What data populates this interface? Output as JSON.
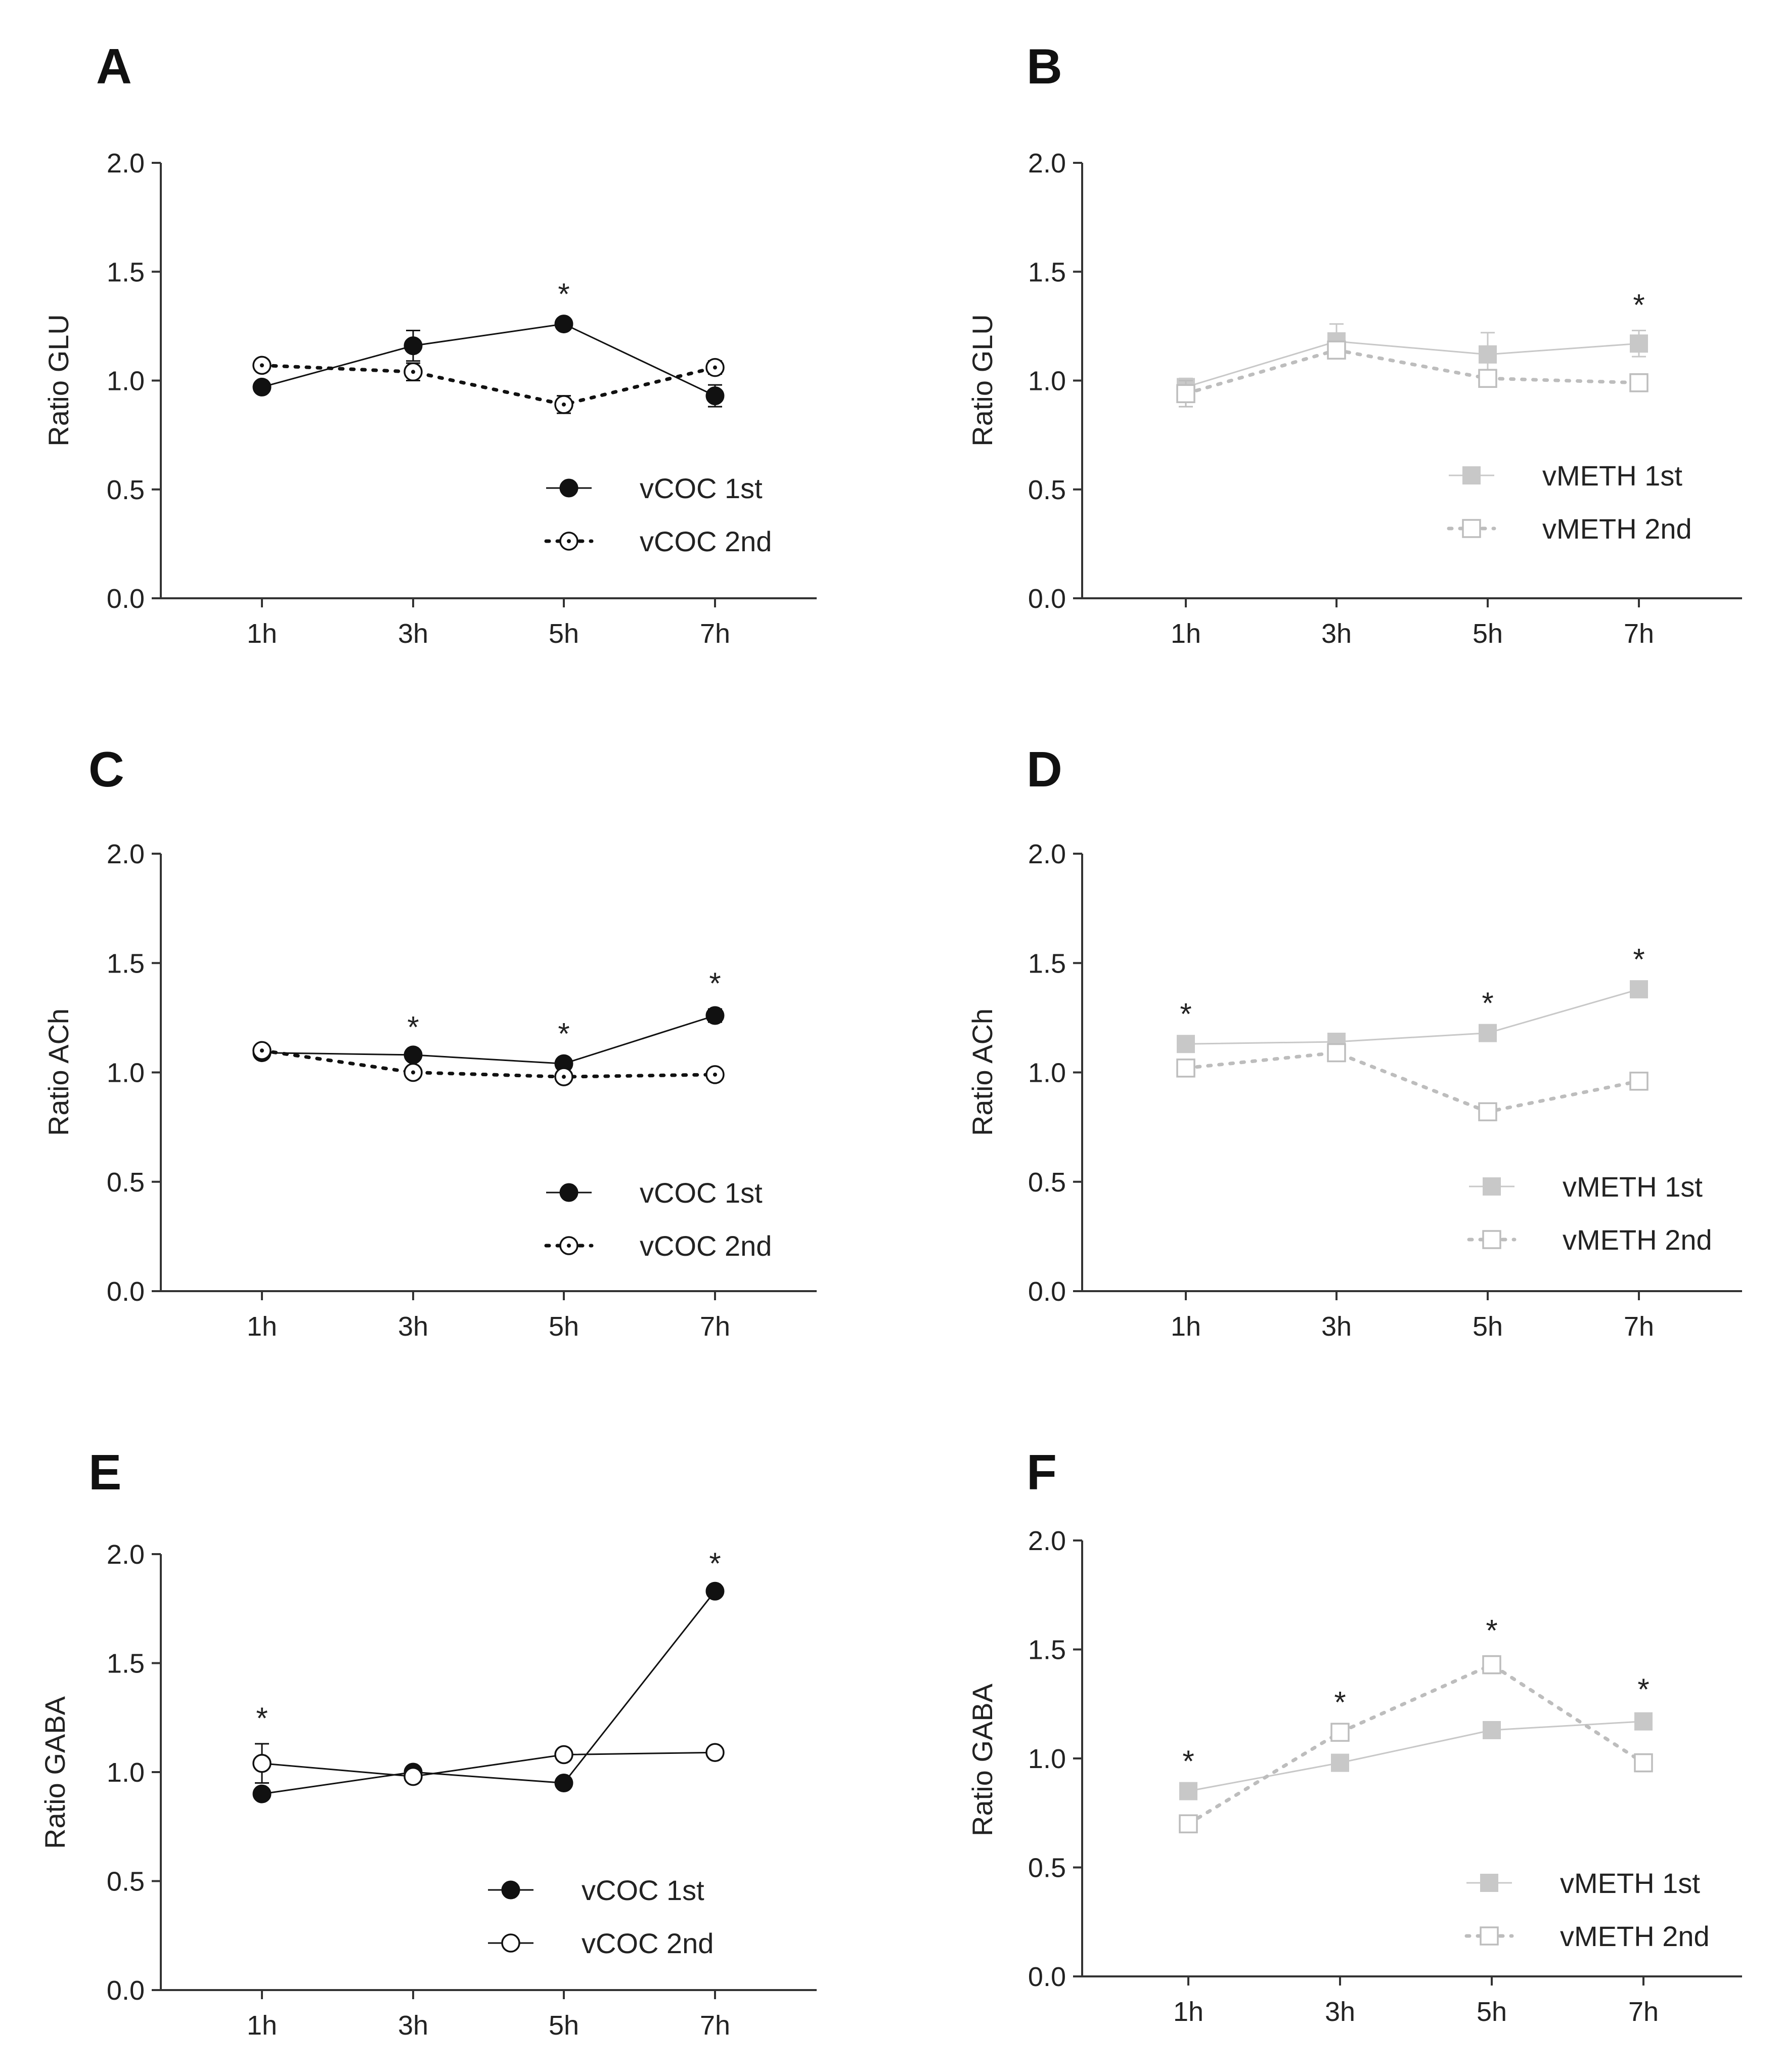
{
  "chart_data": [
    {
      "type": "line",
      "panel": "A",
      "ylabel": "Ratio GLU",
      "categories": [
        "1h",
        "3h",
        "5h",
        "7h"
      ],
      "ylim": [
        0.0,
        2.0
      ],
      "yticks": [
        "0.0",
        "0.5",
        "1.0",
        "1.5",
        "2.0"
      ],
      "series": [
        {
          "name": "vCOC 1st",
          "style": "solid",
          "marker": "filled-circle",
          "color": "#111111",
          "values": [
            0.97,
            1.16,
            1.26,
            0.93
          ],
          "errors": [
            0.02,
            0.07,
            0.02,
            0.05
          ]
        },
        {
          "name": "vCOC 2nd",
          "style": "dotted",
          "marker": "open-circle-dot",
          "color": "#111111",
          "values": [
            1.07,
            1.04,
            0.89,
            1.06
          ],
          "errors": [
            0.02,
            0.04,
            0.04,
            0.03
          ]
        }
      ],
      "significance": [
        "",
        "",
        "*",
        ""
      ]
    },
    {
      "type": "line",
      "panel": "B",
      "ylabel": "Ratio GLU",
      "categories": [
        "1h",
        "3h",
        "5h",
        "7h"
      ],
      "ylim": [
        0.0,
        2.0
      ],
      "yticks": [
        "0.0",
        "0.5",
        "1.0",
        "1.5",
        "2.0"
      ],
      "series": [
        {
          "name": "vMETH 1st",
          "style": "solid",
          "marker": "filled-square",
          "color": "#c8c8c8",
          "values": [
            0.97,
            1.18,
            1.12,
            1.17
          ],
          "errors": [
            0.04,
            0.08,
            0.1,
            0.06
          ]
        },
        {
          "name": "vMETH 2nd",
          "style": "dotted",
          "marker": "open-square",
          "color": "#bdbdbd",
          "values": [
            0.94,
            1.14,
            1.01,
            0.99
          ],
          "errors": [
            0.06,
            0.03,
            0.02,
            0.04
          ]
        }
      ],
      "significance": [
        "",
        "",
        "",
        "*"
      ]
    },
    {
      "type": "line",
      "panel": "C",
      "ylabel": "Ratio ACh",
      "categories": [
        "1h",
        "3h",
        "5h",
        "7h"
      ],
      "ylim": [
        0.0,
        2.0
      ],
      "yticks": [
        "0.0",
        "0.5",
        "1.0",
        "1.5",
        "2.0"
      ],
      "series": [
        {
          "name": "vCOC 1st",
          "style": "solid",
          "marker": "filled-circle",
          "color": "#111111",
          "values": [
            1.09,
            1.08,
            1.04,
            1.26
          ],
          "errors": [
            0.01,
            0.01,
            0.02,
            0.03
          ]
        },
        {
          "name": "vCOC 2nd",
          "style": "dotted",
          "marker": "open-circle-dot",
          "color": "#111111",
          "values": [
            1.1,
            1.0,
            0.98,
            0.99
          ],
          "errors": [
            0.01,
            0.01,
            0.01,
            0.02
          ]
        }
      ],
      "significance": [
        "",
        "*",
        "*",
        "*"
      ]
    },
    {
      "type": "line",
      "panel": "D",
      "ylabel": "Ratio ACh",
      "categories": [
        "1h",
        "3h",
        "5h",
        "7h"
      ],
      "ylim": [
        0.0,
        2.0
      ],
      "yticks": [
        "0.0",
        "0.5",
        "1.0",
        "1.5",
        "2.0"
      ],
      "series": [
        {
          "name": "vMETH 1st",
          "style": "solid",
          "marker": "filled-square",
          "color": "#c8c8c8",
          "values": [
            1.13,
            1.14,
            1.18,
            1.38
          ],
          "errors": [
            0.02,
            0.02,
            0.02,
            0.02
          ]
        },
        {
          "name": "vMETH 2nd",
          "style": "dotted",
          "marker": "open-square",
          "color": "#bdbdbd",
          "values": [
            1.02,
            1.09,
            0.82,
            0.96
          ],
          "errors": [
            0.02,
            0.02,
            0.02,
            0.03
          ]
        }
      ],
      "significance": [
        "*",
        "",
        "*",
        "*"
      ]
    },
    {
      "type": "line",
      "panel": "E",
      "ylabel": "Ratio GABA",
      "categories": [
        "1h",
        "3h",
        "5h",
        "7h"
      ],
      "ylim": [
        0.0,
        2.0
      ],
      "yticks": [
        "0.0",
        "0.5",
        "1.0",
        "1.5",
        "2.0"
      ],
      "series": [
        {
          "name": "vCOC 1st",
          "style": "solid",
          "marker": "filled-circle",
          "color": "#111111",
          "values": [
            0.9,
            1.0,
            0.95,
            1.83
          ],
          "errors": [
            0.02,
            0.02,
            0.02,
            0.01
          ]
        },
        {
          "name": "vCOC 2nd",
          "style": "solid",
          "marker": "open-circle",
          "color": "#111111",
          "values": [
            1.04,
            0.98,
            1.08,
            1.09
          ],
          "errors": [
            0.09,
            0.02,
            0.02,
            0.02
          ]
        }
      ],
      "significance": [
        "*",
        "",
        "",
        "*"
      ]
    },
    {
      "type": "line",
      "panel": "F",
      "ylabel": "Ratio GABA",
      "categories": [
        "1h",
        "3h",
        "5h",
        "7h"
      ],
      "ylim": [
        0.0,
        2.0
      ],
      "yticks": [
        "0.0",
        "0.5",
        "1.0",
        "1.5",
        "2.0"
      ],
      "series": [
        {
          "name": "vMETH 1st",
          "style": "solid",
          "marker": "filled-square",
          "color": "#c8c8c8",
          "values": [
            0.85,
            0.98,
            1.13,
            1.17
          ],
          "errors": [
            0.02,
            0.02,
            0.02,
            0.03
          ]
        },
        {
          "name": "vMETH 2nd",
          "style": "dotted",
          "marker": "open-square",
          "color": "#bdbdbd",
          "values": [
            0.7,
            1.12,
            1.43,
            0.98
          ],
          "errors": [
            0.03,
            0.02,
            0.04,
            0.04
          ]
        }
      ],
      "significance": [
        "*",
        "*",
        "*",
        "*"
      ]
    }
  ]
}
